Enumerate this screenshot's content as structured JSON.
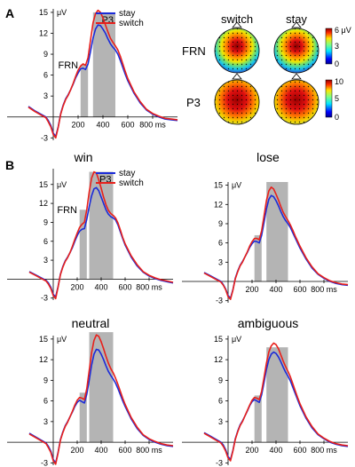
{
  "panel_labels": {
    "a": "A",
    "b": "B"
  },
  "legend": {
    "stay": "stay",
    "switch": "switch"
  },
  "colors": {
    "stay": "#1b2bd8",
    "switch": "#e8201b",
    "window": "#b4b4b4"
  },
  "axis_units": {
    "y": "μV",
    "x": "ms"
  },
  "topomaps": {
    "columns": [
      "switch",
      "stay"
    ],
    "rows": [
      {
        "label": "FRN",
        "colorbar_ticks": [
          "6 μV",
          "3",
          "0"
        ]
      },
      {
        "label": "P3",
        "colorbar_ticks": [
          "10",
          "5",
          "0"
        ]
      }
    ]
  },
  "chart_data": [
    {
      "type": "line",
      "title": "",
      "ylabel": "μV",
      "xlabel": "ms",
      "x": [
        -200,
        -150,
        -100,
        -60,
        -40,
        -20,
        0,
        20,
        40,
        60,
        80,
        100,
        120,
        140,
        160,
        180,
        200,
        220,
        240,
        260,
        280,
        300,
        320,
        340,
        360,
        380,
        400,
        420,
        440,
        460,
        480,
        500,
        520,
        540,
        560,
        580,
        600,
        650,
        700,
        750,
        800,
        850,
        900,
        950,
        1000
      ],
      "x_ticks": [
        200,
        400,
        600,
        800
      ],
      "y_ticks": [
        15,
        12,
        9,
        6,
        3,
        -3
      ],
      "xlim": [
        -200,
        1000
      ],
      "ylim": [
        -3.6,
        15.5
      ],
      "windows": [
        {
          "label": "FRN",
          "x0": 220,
          "x1": 280,
          "y": 7.5
        },
        {
          "label": "P3",
          "x0": 320,
          "x1": 500,
          "y": 15
        }
      ],
      "series": [
        {
          "name": "stay",
          "values": [
            1.5,
            0.9,
            0.4,
            0.0,
            -0.5,
            -1.2,
            -2.3,
            -2.8,
            -1.4,
            0.5,
            1.7,
            2.6,
            3.2,
            3.9,
            4.7,
            5.6,
            6.3,
            6.9,
            7.0,
            6.8,
            7.6,
            9.4,
            11.3,
            12.6,
            13.2,
            13.1,
            12.6,
            12.0,
            11.2,
            10.5,
            10.0,
            9.6,
            9.0,
            8.1,
            7.1,
            6.1,
            5.2,
            3.4,
            2.0,
            1.0,
            0.4,
            0.0,
            -0.3,
            -0.4,
            -0.5
          ]
        },
        {
          "name": "switch",
          "values": [
            1.4,
            0.8,
            0.3,
            -0.1,
            -0.7,
            -1.4,
            -2.5,
            -3.0,
            -1.5,
            0.4,
            1.6,
            2.5,
            3.1,
            3.9,
            4.8,
            5.8,
            6.7,
            7.3,
            7.6,
            7.4,
            8.5,
            11.0,
            13.5,
            14.8,
            15.3,
            15.0,
            14.2,
            13.2,
            12.2,
            11.3,
            10.7,
            10.2,
            9.6,
            8.7,
            7.6,
            6.5,
            5.5,
            3.6,
            2.2,
            1.1,
            0.5,
            0.1,
            -0.2,
            -0.3,
            -0.4
          ]
        }
      ]
    },
    {
      "type": "line",
      "title": "win",
      "ylabel": "μV",
      "xlabel": "ms",
      "x": [
        -200,
        -150,
        -100,
        -60,
        -40,
        -20,
        0,
        20,
        40,
        60,
        80,
        100,
        120,
        140,
        160,
        180,
        200,
        220,
        240,
        260,
        280,
        300,
        320,
        340,
        360,
        380,
        400,
        420,
        440,
        460,
        480,
        500,
        520,
        540,
        560,
        580,
        600,
        650,
        700,
        750,
        800,
        850,
        900,
        950,
        1000
      ],
      "x_ticks": [
        200,
        400,
        600,
        800
      ],
      "y_ticks": [
        15,
        12,
        9,
        6,
        3,
        -3
      ],
      "xlim": [
        -200,
        1000
      ],
      "ylim": [
        -3.6,
        17.5
      ],
      "windows": [
        {
          "label": "FRN",
          "x0": 220,
          "x1": 280,
          "y": 11
        },
        {
          "label": "P3",
          "x0": 300,
          "x1": 500,
          "y": 17
        }
      ],
      "series": [
        {
          "name": "stay",
          "values": [
            1.2,
            0.7,
            0.2,
            -0.2,
            -0.6,
            -1.3,
            -2.4,
            -2.8,
            -1.2,
            0.8,
            2.0,
            2.9,
            3.5,
            4.2,
            5.0,
            6.0,
            6.9,
            7.6,
            7.9,
            8.0,
            9.5,
            11.5,
            13.2,
            14.3,
            14.5,
            14.0,
            13.0,
            12.0,
            11.0,
            10.3,
            9.9,
            9.7,
            9.4,
            8.6,
            7.5,
            6.4,
            5.4,
            3.5,
            2.1,
            1.1,
            0.5,
            0.1,
            -0.2,
            -0.4,
            -0.6
          ]
        },
        {
          "name": "switch",
          "values": [
            1.1,
            0.6,
            0.1,
            -0.3,
            -0.8,
            -1.5,
            -2.6,
            -3.1,
            -1.3,
            0.7,
            1.9,
            2.8,
            3.4,
            4.2,
            5.2,
            6.3,
            7.3,
            8.2,
            8.7,
            9.0,
            11.0,
            13.8,
            16.0,
            17.0,
            16.8,
            15.7,
            14.4,
            13.0,
            11.8,
            10.9,
            10.4,
            10.1,
            9.7,
            8.9,
            7.8,
            6.6,
            5.6,
            3.7,
            2.3,
            1.2,
            0.6,
            0.2,
            -0.1,
            -0.3,
            -0.5
          ]
        }
      ]
    },
    {
      "type": "line",
      "title": "lose",
      "ylabel": "μV",
      "xlabel": "ms",
      "x": [
        -200,
        -150,
        -100,
        -60,
        -40,
        -20,
        0,
        20,
        40,
        60,
        80,
        100,
        120,
        140,
        160,
        180,
        200,
        220,
        240,
        260,
        280,
        300,
        320,
        340,
        360,
        380,
        400,
        420,
        440,
        460,
        480,
        500,
        520,
        540,
        560,
        580,
        600,
        650,
        700,
        750,
        800,
        850,
        900,
        950,
        1000
      ],
      "x_ticks": [
        200,
        400,
        600,
        800
      ],
      "y_ticks": [
        15,
        12,
        9,
        6,
        3,
        -3
      ],
      "xlim": [
        -200,
        1000
      ],
      "ylim": [
        -3.6,
        15.5
      ],
      "windows": [
        {
          "label": "",
          "x0": 220,
          "x1": 280,
          "y": 7.2
        },
        {
          "label": "",
          "x0": 320,
          "x1": 500,
          "y": 15.5
        }
      ],
      "series": [
        {
          "name": "stay",
          "values": [
            1.4,
            0.9,
            0.4,
            0.0,
            -0.5,
            -1.2,
            -2.2,
            -2.6,
            -1.3,
            0.5,
            1.6,
            2.5,
            3.1,
            3.8,
            4.5,
            5.3,
            5.9,
            6.3,
            6.2,
            6.0,
            7.2,
            9.2,
            11.3,
            12.8,
            13.4,
            13.2,
            12.6,
            11.8,
            10.9,
            10.1,
            9.5,
            9.0,
            8.4,
            7.6,
            6.8,
            6.0,
            5.2,
            3.5,
            2.1,
            1.1,
            0.5,
            0.0,
            -0.3,
            -0.5,
            -0.6
          ]
        },
        {
          "name": "switch",
          "values": [
            1.3,
            0.8,
            0.3,
            -0.1,
            -0.6,
            -1.3,
            -2.4,
            -2.8,
            -1.4,
            0.4,
            1.5,
            2.4,
            3.0,
            3.8,
            4.6,
            5.5,
            6.2,
            6.7,
            6.7,
            6.5,
            7.9,
            10.2,
            12.6,
            14.1,
            14.7,
            14.4,
            13.6,
            12.7,
            11.7,
            10.8,
            10.1,
            9.5,
            8.8,
            8.0,
            7.1,
            6.3,
            5.5,
            3.7,
            2.3,
            1.2,
            0.6,
            0.1,
            -0.2,
            -0.4,
            -0.5
          ]
        }
      ]
    },
    {
      "type": "line",
      "title": "neutral",
      "ylabel": "μV",
      "xlabel": "ms",
      "x": [
        -200,
        -150,
        -100,
        -60,
        -40,
        -20,
        0,
        20,
        40,
        60,
        80,
        100,
        120,
        140,
        160,
        180,
        200,
        220,
        240,
        260,
        280,
        300,
        320,
        340,
        360,
        380,
        400,
        420,
        440,
        460,
        480,
        500,
        520,
        540,
        560,
        580,
        600,
        650,
        700,
        750,
        800,
        850,
        900,
        950,
        1000
      ],
      "x_ticks": [
        200,
        400,
        600,
        800
      ],
      "y_ticks": [
        15,
        12,
        9,
        6,
        3,
        -3
      ],
      "xlim": [
        -200,
        1000
      ],
      "ylim": [
        -3.6,
        15.5
      ],
      "windows": [
        {
          "label": "",
          "x0": 220,
          "x1": 280,
          "y": 7.2
        },
        {
          "label": "",
          "x0": 300,
          "x1": 500,
          "y": 16
        }
      ],
      "series": [
        {
          "name": "stay",
          "values": [
            1.3,
            0.8,
            0.3,
            -0.1,
            -0.6,
            -1.3,
            -2.5,
            -3.0,
            -1.5,
            0.4,
            1.5,
            2.4,
            3.0,
            3.7,
            4.4,
            5.2,
            5.8,
            6.1,
            5.9,
            5.7,
            7.0,
            9.0,
            11.2,
            12.8,
            13.5,
            13.4,
            12.8,
            12.0,
            11.1,
            10.3,
            9.7,
            9.2,
            8.6,
            7.8,
            6.9,
            6.0,
            5.2,
            3.4,
            2.0,
            1.0,
            0.4,
            0.0,
            -0.3,
            -0.5,
            -0.6
          ]
        },
        {
          "name": "switch",
          "values": [
            1.2,
            0.7,
            0.2,
            -0.2,
            -0.8,
            -1.5,
            -2.7,
            -3.2,
            -1.6,
            0.3,
            1.4,
            2.3,
            2.9,
            3.7,
            4.5,
            5.4,
            6.1,
            6.5,
            6.4,
            6.2,
            7.8,
            10.4,
            13.0,
            14.8,
            15.6,
            15.4,
            14.6,
            13.6,
            12.5,
            11.5,
            10.7,
            10.1,
            9.3,
            8.4,
            7.4,
            6.4,
            5.5,
            3.6,
            2.2,
            1.1,
            0.5,
            0.1,
            -0.2,
            -0.4,
            -0.5
          ]
        }
      ]
    },
    {
      "type": "line",
      "title": "ambiguous",
      "ylabel": "μV",
      "xlabel": "ms",
      "x": [
        -200,
        -150,
        -100,
        -60,
        -40,
        -20,
        0,
        20,
        40,
        60,
        80,
        100,
        120,
        140,
        160,
        180,
        200,
        220,
        240,
        260,
        280,
        300,
        320,
        340,
        360,
        380,
        400,
        420,
        440,
        460,
        480,
        500,
        520,
        540,
        560,
        580,
        600,
        650,
        700,
        750,
        800,
        850,
        900,
        950,
        1000
      ],
      "x_ticks": [
        200,
        400,
        600,
        800
      ],
      "y_ticks": [
        15,
        12,
        9,
        6,
        3,
        -3
      ],
      "xlim": [
        -200,
        1000
      ],
      "ylim": [
        -3.6,
        15.5
      ],
      "windows": [
        {
          "label": "",
          "x0": 220,
          "x1": 280,
          "y": 6.8
        },
        {
          "label": "",
          "x0": 320,
          "x1": 500,
          "y": 13.8
        }
      ],
      "series": [
        {
          "name": "stay",
          "values": [
            1.4,
            0.9,
            0.4,
            0.0,
            -0.4,
            -1.1,
            -2.1,
            -2.5,
            -1.2,
            0.5,
            1.6,
            2.5,
            3.1,
            3.8,
            4.5,
            5.3,
            5.9,
            6.2,
            6.0,
            5.8,
            6.9,
            8.7,
            10.6,
            12.0,
            12.8,
            13.1,
            12.9,
            12.4,
            11.7,
            10.9,
            10.2,
            9.6,
            8.9,
            8.0,
            7.1,
            6.2,
            5.3,
            3.5,
            2.1,
            1.1,
            0.5,
            0.0,
            -0.3,
            -0.5,
            -0.6
          ]
        },
        {
          "name": "switch",
          "values": [
            1.3,
            0.8,
            0.3,
            -0.1,
            -0.6,
            -1.3,
            -2.3,
            -2.7,
            -1.3,
            0.4,
            1.5,
            2.4,
            3.0,
            3.8,
            4.6,
            5.4,
            6.1,
            6.5,
            6.4,
            6.2,
            7.4,
            9.4,
            11.5,
            13.1,
            14.0,
            14.4,
            14.2,
            13.6,
            12.7,
            11.8,
            11.0,
            10.3,
            9.5,
            8.5,
            7.5,
            6.5,
            5.6,
            3.7,
            2.3,
            1.2,
            0.6,
            0.1,
            -0.2,
            -0.4,
            -0.5
          ]
        }
      ]
    }
  ]
}
